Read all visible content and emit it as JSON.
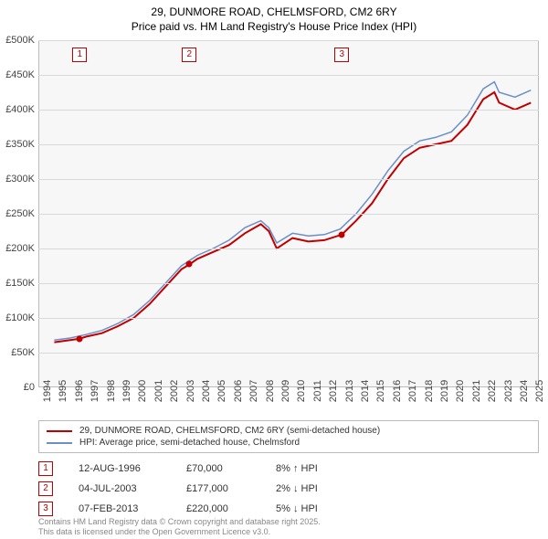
{
  "title_line1": "29, DUNMORE ROAD, CHELMSFORD, CM2 6RY",
  "title_line2": "Price paid vs. HM Land Registry's House Price Index (HPI)",
  "chart": {
    "type": "line",
    "background_color": "#f7f7f7",
    "grid_color": "#d8d8d8",
    "border_color": "#bbbbbb",
    "xlim": [
      1994,
      2025.5
    ],
    "ylim": [
      0,
      500
    ],
    "ytick_step": 50,
    "ytick_labels": [
      "£0",
      "£50K",
      "£100K",
      "£150K",
      "£200K",
      "£250K",
      "£300K",
      "£350K",
      "£400K",
      "£450K",
      "£500K"
    ],
    "xtick_years": [
      1994,
      1995,
      1996,
      1997,
      1998,
      1999,
      2000,
      2001,
      2002,
      2003,
      2004,
      2005,
      2006,
      2007,
      2008,
      2009,
      2010,
      2011,
      2012,
      2013,
      2014,
      2015,
      2016,
      2017,
      2018,
      2019,
      2020,
      2021,
      2022,
      2023,
      2024,
      2025
    ],
    "series": [
      {
        "name": "29, DUNMORE ROAD, CHELMSFORD, CM2 6RY (semi-detached house)",
        "color": "#c00000",
        "line_width": 2,
        "points": [
          [
            1995,
            65
          ],
          [
            1996,
            68
          ],
          [
            1996.6,
            70
          ],
          [
            1997,
            73
          ],
          [
            1998,
            78
          ],
          [
            1999,
            88
          ],
          [
            2000,
            100
          ],
          [
            2001,
            120
          ],
          [
            2002,
            145
          ],
          [
            2003,
            170
          ],
          [
            2003.5,
            177
          ],
          [
            2004,
            185
          ],
          [
            2005,
            195
          ],
          [
            2006,
            205
          ],
          [
            2007,
            222
          ],
          [
            2008,
            235
          ],
          [
            2008.5,
            225
          ],
          [
            2009,
            200
          ],
          [
            2010,
            215
          ],
          [
            2011,
            210
          ],
          [
            2012,
            212
          ],
          [
            2013.1,
            220
          ],
          [
            2014,
            240
          ],
          [
            2015,
            265
          ],
          [
            2016,
            300
          ],
          [
            2017,
            330
          ],
          [
            2018,
            345
          ],
          [
            2019,
            350
          ],
          [
            2020,
            355
          ],
          [
            2021,
            378
          ],
          [
            2022,
            415
          ],
          [
            2022.7,
            425
          ],
          [
            2023,
            410
          ],
          [
            2024,
            400
          ],
          [
            2025,
            410
          ]
        ]
      },
      {
        "name": "HPI: Average price, semi-detached house, Chelmsford",
        "color": "#6b8fc7",
        "line_width": 1.5,
        "points": [
          [
            1995,
            68
          ],
          [
            1996,
            71
          ],
          [
            1997,
            76
          ],
          [
            1998,
            82
          ],
          [
            1999,
            92
          ],
          [
            2000,
            105
          ],
          [
            2001,
            125
          ],
          [
            2002,
            150
          ],
          [
            2003,
            175
          ],
          [
            2004,
            190
          ],
          [
            2005,
            200
          ],
          [
            2006,
            212
          ],
          [
            2007,
            230
          ],
          [
            2008,
            240
          ],
          [
            2008.5,
            230
          ],
          [
            2009,
            208
          ],
          [
            2010,
            222
          ],
          [
            2011,
            218
          ],
          [
            2012,
            220
          ],
          [
            2013,
            228
          ],
          [
            2014,
            250
          ],
          [
            2015,
            278
          ],
          [
            2016,
            312
          ],
          [
            2017,
            340
          ],
          [
            2018,
            355
          ],
          [
            2019,
            360
          ],
          [
            2020,
            368
          ],
          [
            2021,
            392
          ],
          [
            2022,
            430
          ],
          [
            2022.7,
            440
          ],
          [
            2023,
            425
          ],
          [
            2024,
            418
          ],
          [
            2025,
            428
          ]
        ]
      }
    ],
    "markers": [
      {
        "num": "1",
        "year": 1996.6,
        "value": 70,
        "box_y_offset": -60
      },
      {
        "num": "2",
        "year": 2003.5,
        "value": 177,
        "box_y_offset": -45
      },
      {
        "num": "3",
        "year": 2013.1,
        "value": 220,
        "box_y_offset": -50
      }
    ]
  },
  "legend": {
    "items": [
      {
        "color": "#c00000",
        "label": "29, DUNMORE ROAD, CHELMSFORD, CM2 6RY (semi-detached house)"
      },
      {
        "color": "#6b8fc7",
        "label": "HPI: Average price, semi-detached house, Chelmsford"
      }
    ]
  },
  "sale_points": [
    {
      "num": "1",
      "date": "12-AUG-1996",
      "price": "£70,000",
      "diff": "8% ↑ HPI"
    },
    {
      "num": "2",
      "date": "04-JUL-2003",
      "price": "£177,000",
      "diff": "2% ↓ HPI"
    },
    {
      "num": "3",
      "date": "07-FEB-2013",
      "price": "£220,000",
      "diff": "5% ↓ HPI"
    }
  ],
  "footer_line1": "Contains HM Land Registry data © Crown copyright and database right 2025.",
  "footer_line2": "This data is licensed under the Open Government Licence v3.0."
}
